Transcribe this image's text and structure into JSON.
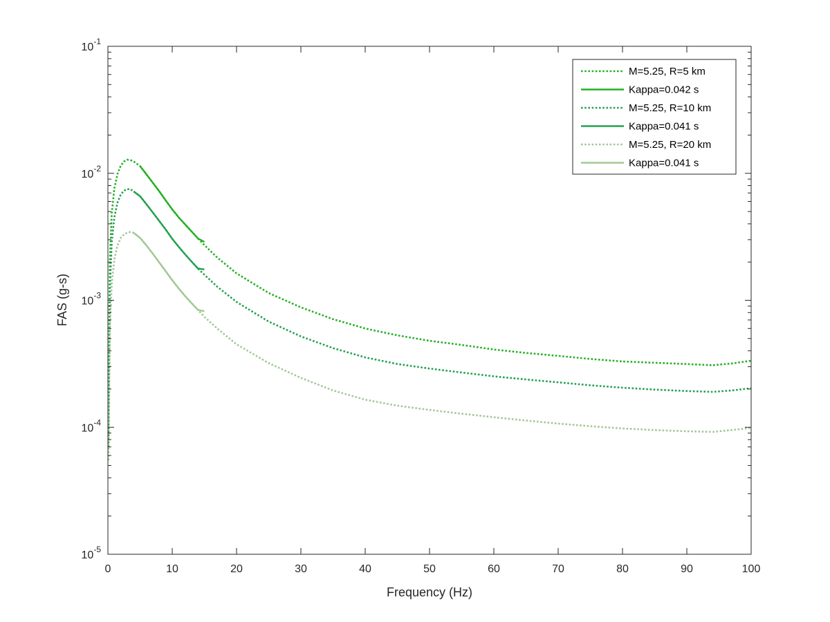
{
  "chart_data": {
    "type": "line",
    "xlabel": "Frequency (Hz)",
    "ylabel": "FAS (g-s)",
    "xlim": [
      0,
      100
    ],
    "ylim": [
      1e-05,
      0.1
    ],
    "yscale": "log",
    "grid": false,
    "legend_position": "top-right",
    "x_ticks": [
      "0",
      "10",
      "20",
      "30",
      "40",
      "50",
      "60",
      "70",
      "80",
      "90",
      "100"
    ],
    "y_ticks": [
      {
        "base": "10",
        "exp": "-5"
      },
      {
        "base": "10",
        "exp": "-4"
      },
      {
        "base": "10",
        "exp": "-3"
      },
      {
        "base": "10",
        "exp": "-2"
      },
      {
        "base": "10",
        "exp": "-1"
      }
    ],
    "series": [
      {
        "name": "M=5.25, R=5 km",
        "style": "dotted",
        "color": "#22B022",
        "x": [
          0.1,
          0.3,
          0.6,
          1,
          1.5,
          2,
          2.5,
          3,
          3.5,
          4,
          5,
          6,
          7,
          8,
          9,
          10,
          11,
          12,
          13,
          14,
          15,
          17,
          20,
          25,
          30,
          35,
          40,
          45,
          50,
          55,
          60,
          65,
          70,
          75,
          80,
          85,
          90,
          94,
          97,
          100
        ],
        "y": [
          8.5e-05,
          0.0021,
          0.0049,
          0.0076,
          0.0099,
          0.0115,
          0.0124,
          0.0128,
          0.0127,
          0.0124,
          0.0114,
          0.0098,
          0.0084,
          0.0072,
          0.0061,
          0.0052,
          0.0045,
          0.00396,
          0.00349,
          0.00307,
          0.00272,
          0.00217,
          0.00163,
          0.00114,
          0.00088,
          0.00071,
          0.0006,
          0.00053,
          0.00048,
          0.000445,
          0.00041,
          0.000385,
          0.000365,
          0.000345,
          0.00033,
          0.000322,
          0.000315,
          0.000308,
          0.000318,
          0.000334
        ]
      },
      {
        "name": "Kappa=0.042 s",
        "style": "solid",
        "color": "#22B022",
        "x": [
          5,
          6,
          7,
          8,
          9,
          10,
          11,
          12,
          13,
          14,
          15
        ],
        "y": [
          0.0114,
          0.0098,
          0.0084,
          0.0072,
          0.0061,
          0.0052,
          0.0045,
          0.00396,
          0.00349,
          0.00307,
          0.00288
        ]
      },
      {
        "name": "M=5.25, R=10 km",
        "style": "dotted",
        "color": "#22A050",
        "x": [
          0.1,
          0.3,
          0.6,
          1,
          1.5,
          2,
          2.5,
          3,
          3.5,
          4,
          5,
          6,
          7,
          8,
          9,
          10,
          11,
          12,
          13,
          14,
          15,
          17,
          20,
          25,
          30,
          35,
          40,
          45,
          50,
          55,
          60,
          65,
          70,
          75,
          80,
          85,
          90,
          94,
          97,
          100
        ],
        "y": [
          7e-05,
          0.0012,
          0.0029,
          0.0045,
          0.0059,
          0.0068,
          0.0073,
          0.0075,
          0.0075,
          0.0072,
          0.0066,
          0.0057,
          0.0049,
          0.0042,
          0.0036,
          0.00305,
          0.00264,
          0.0023,
          0.00202,
          0.00178,
          0.00159,
          0.00128,
          0.00097,
          0.00068,
          0.00052,
          0.00042,
          0.000355,
          0.000315,
          0.00029,
          0.00027,
          0.000252,
          0.000238,
          0.000226,
          0.000214,
          0.000205,
          0.000198,
          0.000193,
          0.00019,
          0.000195,
          0.000203
        ]
      },
      {
        "name": "Kappa=0.041 s",
        "style": "solid",
        "color": "#22A050",
        "x": [
          4,
          5,
          6,
          7,
          8,
          9,
          10,
          11,
          12,
          13,
          14,
          15
        ],
        "y": [
          0.0072,
          0.0066,
          0.0057,
          0.0049,
          0.0042,
          0.0036,
          0.00305,
          0.00264,
          0.0023,
          0.00202,
          0.00178,
          0.00175
        ]
      },
      {
        "name": "M=5.25, R=20 km",
        "style": "dotted",
        "color": "#A0C896",
        "x": [
          0.1,
          0.3,
          0.6,
          1,
          1.5,
          2,
          2.5,
          3,
          3.5,
          4,
          5,
          6,
          7,
          8,
          9,
          10,
          11,
          12,
          13,
          14,
          15,
          17,
          20,
          25,
          30,
          35,
          40,
          45,
          50,
          55,
          60,
          65,
          70,
          75,
          80,
          85,
          90,
          94,
          97,
          100
        ],
        "y": [
          5.5e-05,
          0.0006,
          0.00135,
          0.0021,
          0.0027,
          0.0031,
          0.0033,
          0.0034,
          0.00345,
          0.0034,
          0.0031,
          0.0027,
          0.00232,
          0.00198,
          0.00169,
          0.00144,
          0.00124,
          0.00108,
          0.00095,
          0.00084,
          0.00074,
          0.0006,
          0.00045,
          0.00032,
          0.000245,
          0.000195,
          0.000165,
          0.000148,
          0.000137,
          0.000128,
          0.00012,
          0.000113,
          0.000107,
          0.000102,
          9.8e-05,
          9.5e-05,
          9.3e-05,
          9.2e-05,
          9.5e-05,
          9.9e-05
        ]
      },
      {
        "name": "Kappa=0.041 s",
        "style": "solid",
        "color": "#A0C896",
        "x": [
          4,
          5,
          6,
          7,
          8,
          9,
          10,
          11,
          12,
          13,
          14,
          15
        ],
        "y": [
          0.0034,
          0.0031,
          0.0027,
          0.00232,
          0.00198,
          0.00169,
          0.00144,
          0.00124,
          0.00108,
          0.00095,
          0.00084,
          0.00082
        ]
      }
    ]
  }
}
